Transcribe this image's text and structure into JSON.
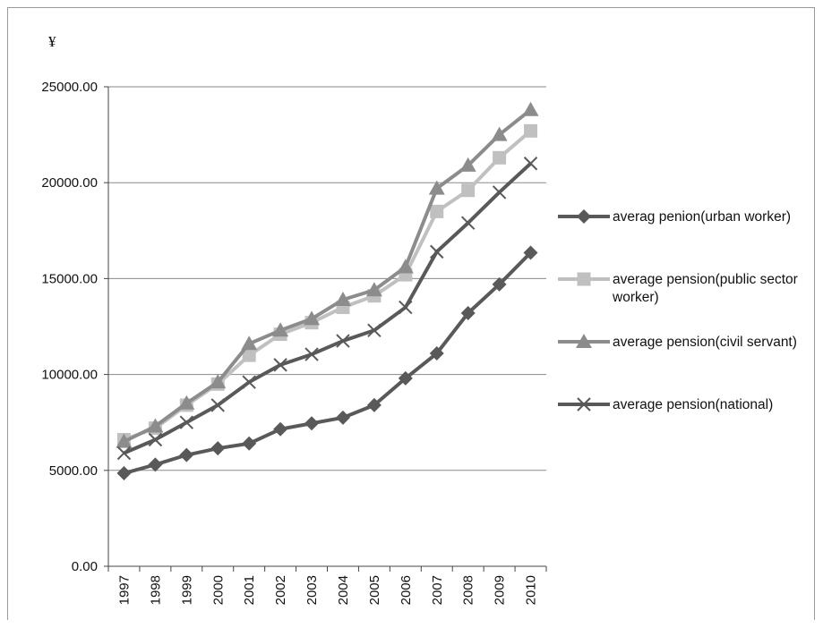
{
  "chart_data": {
    "type": "line",
    "ylabel": "¥",
    "ylim": [
      0,
      25000
    ],
    "yticks": [
      "0.00",
      "5000.00",
      "10000.00",
      "15000.00",
      "20000.00",
      "25000.00"
    ],
    "categories": [
      "1997",
      "1998",
      "1999",
      "2000",
      "2001",
      "2002",
      "2003",
      "2004",
      "2005",
      "2006",
      "2007",
      "2008",
      "2009",
      "2010"
    ],
    "grid": true,
    "legend_position": "right",
    "series": [
      {
        "name": "averag penion(urban worker)",
        "marker": "diamond",
        "color": "#595959",
        "values": [
          4850,
          5300,
          5800,
          6150,
          6400,
          7150,
          7450,
          7750,
          8400,
          9800,
          11100,
          13200,
          14700,
          16350
        ]
      },
      {
        "name": "average pension(public sector worker)",
        "legend_lines": [
          "average pension(public sector",
          "worker)"
        ],
        "marker": "square",
        "color": "#c0c0c0",
        "values": [
          6600,
          7200,
          8400,
          9500,
          11000,
          12100,
          12700,
          13500,
          14100,
          15200,
          18500,
          19600,
          21300,
          22700
        ]
      },
      {
        "name": "average pension(civil servant)",
        "marker": "triangle",
        "color": "#8c8c8c",
        "values": [
          6500,
          7300,
          8500,
          9600,
          11600,
          12300,
          12900,
          13900,
          14400,
          15600,
          19700,
          20900,
          22500,
          23800
        ]
      },
      {
        "name": "average pension(national)",
        "marker": "x",
        "color": "#595959",
        "values": [
          5900,
          6600,
          7500,
          8400,
          9600,
          10500,
          11050,
          11750,
          12300,
          13500,
          16400,
          17900,
          19500,
          21000
        ]
      }
    ]
  }
}
